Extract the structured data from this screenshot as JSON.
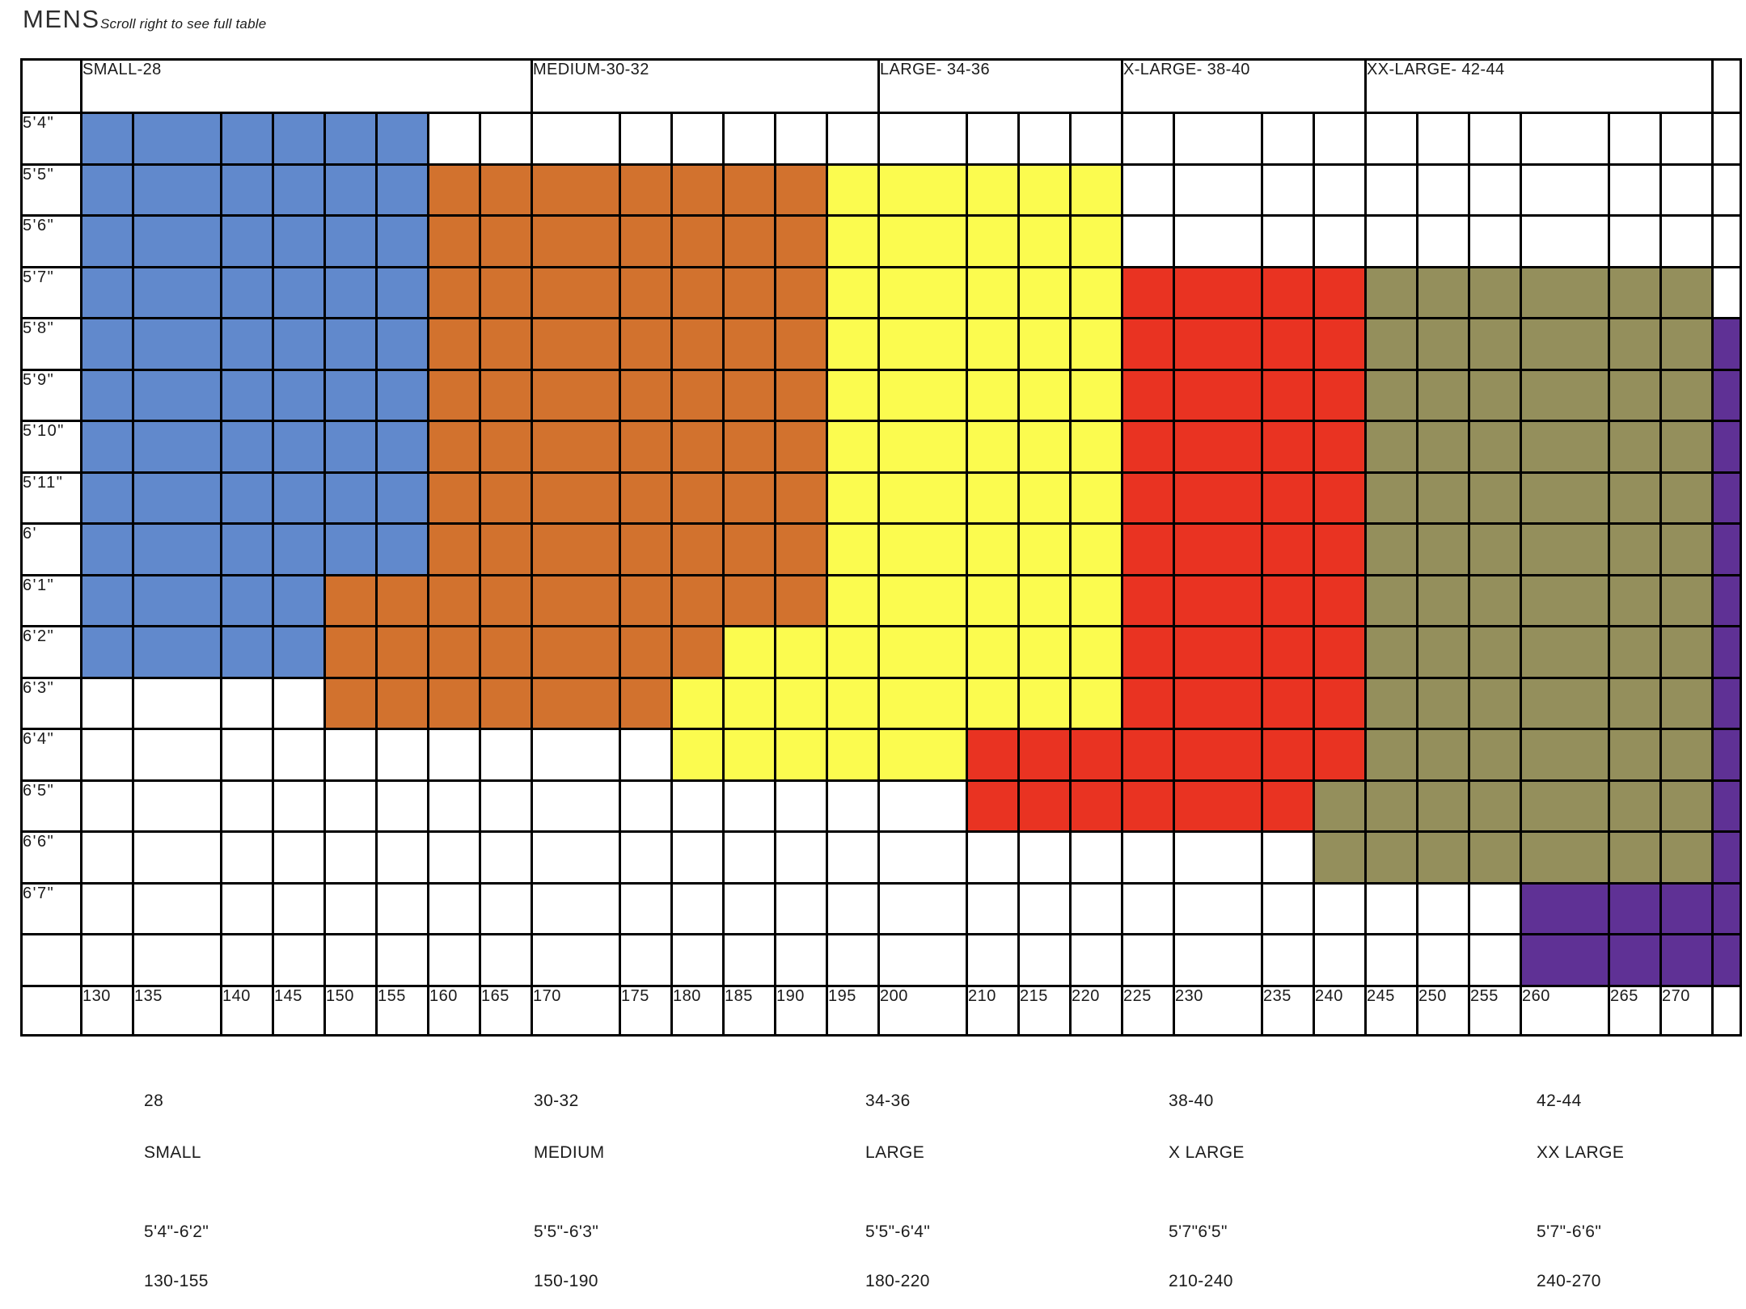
{
  "page": {
    "title": "MENS",
    "note": "Scroll right to see full table"
  },
  "colors": {
    "S": "#6189CC",
    "M": "#D2722E",
    "L": "#FBFB4F",
    "X": "#E93322",
    "XX": "#948F5C",
    "P": "#5F3195",
    "grid_line": "#000000",
    "text": "#1E1E1E",
    "background": "#FFFFFF"
  },
  "table": {
    "header_groups": [
      {
        "label": "SMALL-28",
        "span": 8
      },
      {
        "label": "MEDIUM-30-32",
        "span": 6
      },
      {
        "label": "LARGE- 34-36",
        "span": 4
      },
      {
        "label": "X-LARGE- 38-40",
        "span": 4
      },
      {
        "label": "XX-LARGE- 42-44",
        "span": 6
      }
    ],
    "weights": [
      "130",
      "135",
      "140",
      "145",
      "150",
      "155",
      "160",
      "165",
      "170",
      "175",
      "180",
      "185",
      "190",
      "195",
      "200",
      "210",
      "215",
      "220",
      "225",
      "230",
      "235",
      "240",
      "245",
      "250",
      "255",
      "260",
      "265",
      "270"
    ],
    "wide_weights": [
      "135",
      "170",
      "200",
      "230",
      "260"
    ],
    "row_labels": [
      "5'4\"",
      "5'5\"",
      "5'6\"",
      "5'7\"",
      "5'8\"",
      "5'9\"",
      "5'10\"",
      "5'11\"",
      "6'",
      "6'1\"",
      "6'2\"",
      "6'3\"",
      "6'4\"",
      "6'5\"",
      "6'6\"",
      "6'7\"",
      ""
    ]
  },
  "chart_data": {
    "type": "heatmap",
    "title": "MENS",
    "x": [
      130,
      135,
      140,
      145,
      150,
      155,
      160,
      165,
      170,
      175,
      180,
      185,
      190,
      195,
      200,
      210,
      215,
      220,
      225,
      230,
      235,
      240,
      245,
      250,
      255,
      260,
      265,
      270
    ],
    "y": [
      "5'4\"",
      "5'5\"",
      "5'6\"",
      "5'7\"",
      "5'8\"",
      "5'9\"",
      "5'10\"",
      "5'11\"",
      "6'",
      "6'1\"",
      "6'2\"",
      "6'3\"",
      "6'4\"",
      "6'5\"",
      "6'6\"",
      "6'7\"",
      ""
    ],
    "legend": {
      "S": "SMALL-28",
      "M": "MEDIUM-30-32",
      "L": "LARGE- 34-36",
      "X": "X-LARGE- 38-40",
      "XX": "XX-LARGE- 42-44",
      "P": "unlabeled purple region (cut off at right edge)"
    },
    "matrix": [
      [
        "S",
        "S",
        "S",
        "S",
        "S",
        "S",
        "",
        "",
        "",
        "",
        "",
        "",
        "",
        "",
        "",
        "",
        "",
        "",
        "",
        "",
        "",
        "",
        "",
        "",
        "",
        "",
        "",
        ""
      ],
      [
        "S",
        "S",
        "S",
        "S",
        "S",
        "S",
        "M",
        "M",
        "M",
        "M",
        "M",
        "M",
        "M",
        "L",
        "L",
        "L",
        "L",
        "L",
        "",
        "",
        "",
        "",
        "",
        "",
        "",
        "",
        "",
        ""
      ],
      [
        "S",
        "S",
        "S",
        "S",
        "S",
        "S",
        "M",
        "M",
        "M",
        "M",
        "M",
        "M",
        "M",
        "L",
        "L",
        "L",
        "L",
        "L",
        "",
        "",
        "",
        "",
        "",
        "",
        "",
        "",
        "",
        ""
      ],
      [
        "S",
        "S",
        "S",
        "S",
        "S",
        "S",
        "M",
        "M",
        "M",
        "M",
        "M",
        "M",
        "M",
        "L",
        "L",
        "L",
        "L",
        "L",
        "X",
        "X",
        "X",
        "X",
        "XX",
        "XX",
        "XX",
        "XX",
        "XX",
        "XX"
      ],
      [
        "S",
        "S",
        "S",
        "S",
        "S",
        "S",
        "M",
        "M",
        "M",
        "M",
        "M",
        "M",
        "M",
        "L",
        "L",
        "L",
        "L",
        "L",
        "X",
        "X",
        "X",
        "X",
        "XX",
        "XX",
        "XX",
        "XX",
        "XX",
        "XX"
      ],
      [
        "S",
        "S",
        "S",
        "S",
        "S",
        "S",
        "M",
        "M",
        "M",
        "M",
        "M",
        "M",
        "M",
        "L",
        "L",
        "L",
        "L",
        "L",
        "X",
        "X",
        "X",
        "X",
        "XX",
        "XX",
        "XX",
        "XX",
        "XX",
        "XX"
      ],
      [
        "S",
        "S",
        "S",
        "S",
        "S",
        "S",
        "M",
        "M",
        "M",
        "M",
        "M",
        "M",
        "M",
        "L",
        "L",
        "L",
        "L",
        "L",
        "X",
        "X",
        "X",
        "X",
        "XX",
        "XX",
        "XX",
        "XX",
        "XX",
        "XX"
      ],
      [
        "S",
        "S",
        "S",
        "S",
        "S",
        "S",
        "M",
        "M",
        "M",
        "M",
        "M",
        "M",
        "M",
        "L",
        "L",
        "L",
        "L",
        "L",
        "X",
        "X",
        "X",
        "X",
        "XX",
        "XX",
        "XX",
        "XX",
        "XX",
        "XX"
      ],
      [
        "S",
        "S",
        "S",
        "S",
        "S",
        "S",
        "M",
        "M",
        "M",
        "M",
        "M",
        "M",
        "M",
        "L",
        "L",
        "L",
        "L",
        "L",
        "X",
        "X",
        "X",
        "X",
        "XX",
        "XX",
        "XX",
        "XX",
        "XX",
        "XX"
      ],
      [
        "S",
        "S",
        "S",
        "S",
        "M",
        "M",
        "M",
        "M",
        "M",
        "M",
        "M",
        "M",
        "M",
        "L",
        "L",
        "L",
        "L",
        "L",
        "X",
        "X",
        "X",
        "X",
        "XX",
        "XX",
        "XX",
        "XX",
        "XX",
        "XX"
      ],
      [
        "S",
        "S",
        "S",
        "S",
        "M",
        "M",
        "M",
        "M",
        "M",
        "M",
        "M",
        "L",
        "L",
        "L",
        "L",
        "L",
        "L",
        "L",
        "X",
        "X",
        "X",
        "X",
        "XX",
        "XX",
        "XX",
        "XX",
        "XX",
        "XX"
      ],
      [
        "",
        "",
        "",
        "",
        "M",
        "M",
        "M",
        "M",
        "M",
        "M",
        "L",
        "L",
        "L",
        "L",
        "L",
        "L",
        "L",
        "L",
        "X",
        "X",
        "X",
        "X",
        "XX",
        "XX",
        "XX",
        "XX",
        "XX",
        "XX"
      ],
      [
        "",
        "",
        "",
        "",
        "",
        "",
        "",
        "",
        "",
        "",
        "L",
        "L",
        "L",
        "L",
        "L",
        "X",
        "X",
        "X",
        "X",
        "X",
        "X",
        "X",
        "XX",
        "XX",
        "XX",
        "XX",
        "XX",
        "XX"
      ],
      [
        "",
        "",
        "",
        "",
        "",
        "",
        "",
        "",
        "",
        "",
        "",
        "",
        "",
        "",
        "",
        "X",
        "X",
        "X",
        "X",
        "X",
        "X",
        "XX",
        "XX",
        "XX",
        "XX",
        "XX",
        "XX",
        "XX"
      ],
      [
        "",
        "",
        "",
        "",
        "",
        "",
        "",
        "",
        "",
        "",
        "",
        "",
        "",
        "",
        "",
        "",
        "",
        "",
        "",
        "",
        "",
        "XX",
        "XX",
        "XX",
        "XX",
        "XX",
        "XX",
        "XX"
      ],
      [
        "",
        "",
        "",
        "",
        "",
        "",
        "",
        "",
        "",
        "",
        "",
        "",
        "",
        "",
        "",
        "",
        "",
        "",
        "",
        "",
        "",
        "",
        "",
        "",
        "",
        "P",
        "P",
        "P"
      ],
      [
        "",
        "",
        "",
        "",
        "",
        "",
        "",
        "",
        "",
        "",
        "",
        "",
        "",
        "",
        "",
        "",
        "",
        "",
        "",
        "",
        "",
        "",
        "",
        "",
        "",
        "P",
        "P",
        "P"
      ]
    ],
    "edge_strip_rows": [
      4,
      5,
      6,
      7,
      8,
      9,
      10,
      11,
      12,
      13,
      14,
      15,
      16
    ],
    "summary": [
      {
        "size": "28",
        "name": "SMALL",
        "height_range": "5'4\"-6'2\"",
        "weight_range": "130-155"
      },
      {
        "size": "30-32",
        "name": "MEDIUM",
        "height_range": "5'5\"-6'3\"",
        "weight_range": "150-190"
      },
      {
        "size": "34-36",
        "name": "LARGE",
        "height_range": "5'5\"-6'4\"",
        "weight_range": "180-220"
      },
      {
        "size": "38-40",
        "name": "X LARGE",
        "height_range": "5'7\"6'5\"",
        "weight_range": "210-240"
      },
      {
        "size": "42-44",
        "name": "XX LARGE",
        "height_range": "5'7\"-6'6\"",
        "weight_range": "240-270"
      }
    ]
  },
  "summary": {
    "columns": [
      {
        "size": "28",
        "name": "SMALL",
        "height_range": "5'4\"-6'2\"",
        "weight_range": "130-155"
      },
      {
        "size": "30-32",
        "name": "MEDIUM",
        "height_range": "5'5\"-6'3\"",
        "weight_range": "150-190"
      },
      {
        "size": "34-36",
        "name": "LARGE",
        "height_range": "5'5\"-6'4\"",
        "weight_range": "180-220"
      },
      {
        "size": "38-40",
        "name": "X LARGE",
        "height_range": "5'7\"6'5\"",
        "weight_range": "210-240"
      },
      {
        "size": "42-44",
        "name": "XX LARGE",
        "height_range": "5'7\"-6'6\"",
        "weight_range": "240-270"
      }
    ]
  }
}
